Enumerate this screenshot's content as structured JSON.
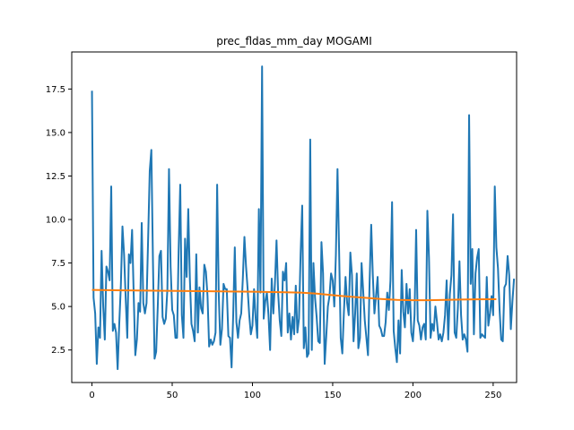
{
  "chart_data": {
    "type": "line",
    "title": "prec_fldas_mm_day MOGAMI",
    "xlabel": "",
    "ylabel": "",
    "xlim": [
      -12.6,
      264.6
    ],
    "ylim": [
      0.63,
      19.63
    ],
    "x_ticks": [
      0,
      50,
      100,
      150,
      200,
      250
    ],
    "y_ticks": [
      2.5,
      5.0,
      7.5,
      10.0,
      12.5,
      15.0,
      17.5
    ],
    "y_tick_labels": [
      "2.5",
      "5.0",
      "7.5",
      "10.0",
      "12.5",
      "15.0",
      "17.5"
    ],
    "grid": false,
    "series": [
      {
        "color": "#1f77b4",
        "x_start": 0,
        "values": [
          17.4,
          5.5,
          4.6,
          1.7,
          3.8,
          3.2,
          8.2,
          5.0,
          3.1,
          7.3,
          7.0,
          6.5,
          11.9,
          3.6,
          4.0,
          3.5,
          1.4,
          4.0,
          6.2,
          9.6,
          8.0,
          5.5,
          3.2,
          8.0,
          7.5,
          9.4,
          5.7,
          2.2,
          3.1,
          5.2,
          4.7,
          9.8,
          5.2,
          4.6,
          5.2,
          8.9,
          12.8,
          14.0,
          7.6,
          2.0,
          2.4,
          5.0,
          7.9,
          8.2,
          4.4,
          4.0,
          4.3,
          6.0,
          12.9,
          7.3,
          4.8,
          4.5,
          3.2,
          3.2,
          8.2,
          12.0,
          4.5,
          3.2,
          8.9,
          6.7,
          10.6,
          6.6,
          4.0,
          3.6,
          3.0,
          8.0,
          3.5,
          6.1,
          4.9,
          4.6,
          7.4,
          7.0,
          5.6,
          2.7,
          3.1,
          2.8,
          3.0,
          3.5,
          12.0,
          5.7,
          2.8,
          3.7,
          6.3,
          6.0,
          6.0,
          3.3,
          3.2,
          1.5,
          4.5,
          8.4,
          4.1,
          3.2,
          4.2,
          4.6,
          6.6,
          9.0,
          7.3,
          6.0,
          4.5,
          3.4,
          3.9,
          6.0,
          4.3,
          3.2,
          10.6,
          5.8,
          18.8,
          4.3,
          5.3,
          5.8,
          4.5,
          2.5,
          6.6,
          4.6,
          6.3,
          8.8,
          5.8,
          4.2,
          3.3,
          7.0,
          6.5,
          7.5,
          3.5,
          4.6,
          3.1,
          4.4,
          3.4,
          6.2,
          3.5,
          4.3,
          8.0,
          10.8,
          2.6,
          3.8,
          2.1,
          2.3,
          14.6,
          2.5,
          7.5,
          5.5,
          4.4,
          3.0,
          2.9,
          8.7,
          6.9,
          1.7,
          3.3,
          5.0,
          5.6,
          6.9,
          6.5,
          5.0,
          8.0,
          12.9,
          8.2,
          3.2,
          2.3,
          4.7,
          6.7,
          5.2,
          4.5,
          8.1,
          6.8,
          3.0,
          4.6,
          6.9,
          2.6,
          3.2,
          7.5,
          5.9,
          4.2,
          3.2,
          2.2,
          6.4,
          9.7,
          6.8,
          4.6,
          5.6,
          6.7,
          3.9,
          3.7,
          3.3,
          3.3,
          4.1,
          5.8,
          4.8,
          6.5,
          11.0,
          3.6,
          2.6,
          1.8,
          4.2,
          2.3,
          7.1,
          4.7,
          3.8,
          6.3,
          4.6,
          6.0,
          3.5,
          3.0,
          4.5,
          9.4,
          4.2,
          3.9,
          3.1,
          3.8,
          4.0,
          3.1,
          10.5,
          7.8,
          3.2,
          4.0,
          3.6,
          5.0,
          4.1,
          3.1,
          3.4,
          3.0,
          3.5,
          4.5,
          6.5,
          3.1,
          5.7,
          6.8,
          10.3,
          3.5,
          3.2,
          4.9,
          7.6,
          4.5,
          3.1,
          3.4,
          3.1,
          2.4,
          16.0,
          6.3,
          8.3,
          3.4,
          6.9,
          7.8,
          8.3,
          3.2,
          3.4,
          3.3,
          3.2,
          6.7,
          3.9,
          4.6,
          5.6,
          4.5,
          11.9,
          8.4,
          7.2,
          4.8,
          3.1,
          3.0,
          6.1,
          6.3,
          7.9,
          6.8,
          3.7,
          5.3,
          6.6
        ]
      },
      {
        "color": "#ff7f0e",
        "x": [
          0,
          20,
          40,
          60,
          80,
          100,
          120,
          130,
          140,
          150,
          160,
          170,
          180,
          190,
          200,
          210,
          220,
          230,
          240,
          252
        ],
        "values": [
          5.95,
          5.93,
          5.91,
          5.89,
          5.87,
          5.85,
          5.82,
          5.8,
          5.74,
          5.65,
          5.57,
          5.5,
          5.43,
          5.38,
          5.36,
          5.36,
          5.38,
          5.4,
          5.41,
          5.42
        ]
      }
    ]
  }
}
